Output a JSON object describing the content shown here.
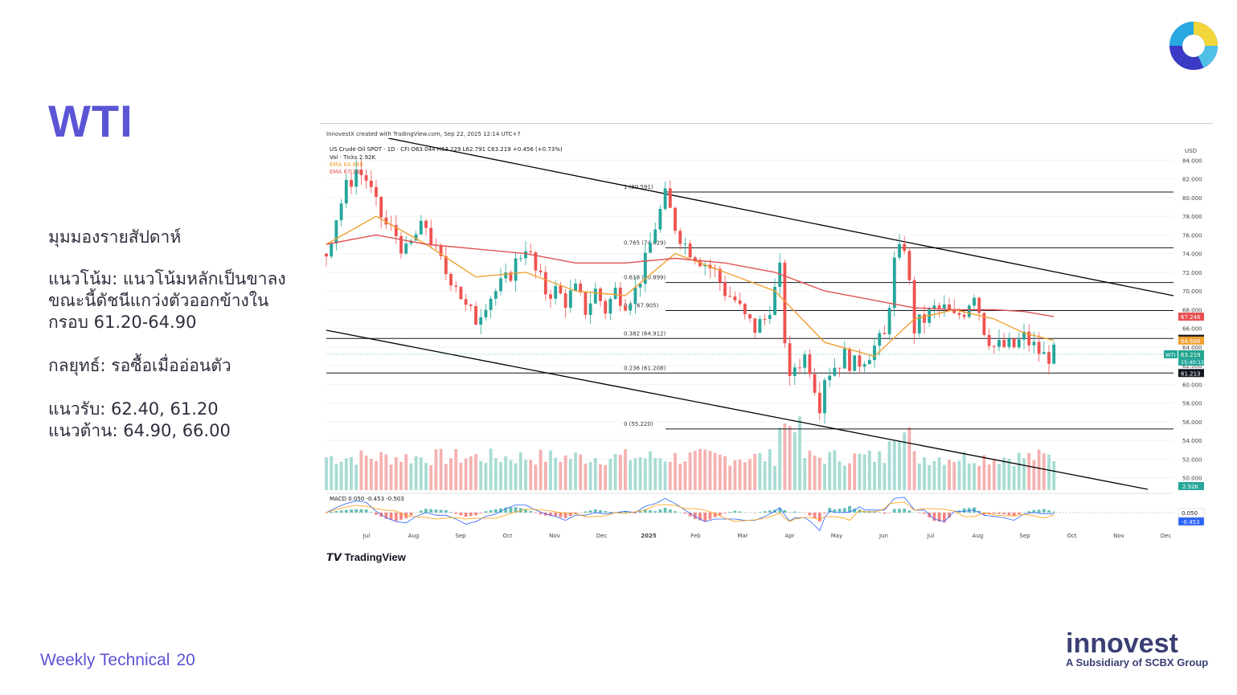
{
  "title": "WTI",
  "commentary": {
    "heading": "มุมมองรายสัปดาห์",
    "trend_line1": "แนวโน้ม: แนวโน้มหลักเป็นขาลง",
    "trend_line2": "ขณะนี้ดัชนีแกว่งตัวออกข้างใน",
    "trend_line3": "กรอบ 61.20-64.90",
    "strategy": "กลยุทธ์: รอซื้อเมื่ออ่อนตัว",
    "support": "แนวรับ: 62.40, 61.20",
    "resistance": "แนวต้าน: 64.90, 66.00"
  },
  "footer": {
    "label": "Weekly Technical",
    "page": "20"
  },
  "brand": {
    "name": "innovest",
    "tagline": "A Subsidiary of SCBX Group"
  },
  "chart_header": {
    "credit": "InnovestX created with TradingView.com, Sep 22, 2025 12:14 UTC+7",
    "symbol_line": "US Crude Oil SPOT · 1D · CFI  O63.044  H63.229  L62.791  C63.219  +0.456 (+0.73%)",
    "vol_line": "Vol · Ticks 2.92K",
    "ema1_line": "EMA 64.688",
    "ema2_line": "EMA 67.246",
    "currency": "USD",
    "tradingview": "TradingView",
    "macd_line": "MACD 0.050 -0.453 -0.503"
  },
  "chart_data": {
    "type": "line",
    "symbol": "US Crude Oil SPOT",
    "interval": "1D",
    "ohlc_last": {
      "open": 63.044,
      "high": 63.229,
      "low": 62.791,
      "close": 63.219,
      "change": 0.456,
      "change_pct": 0.73
    },
    "x_labels": [
      "Jul",
      "Aug",
      "Sep",
      "Oct",
      "Nov",
      "Dec",
      "2025",
      "Feb",
      "Mar",
      "Apr",
      "May",
      "Jun",
      "Jul",
      "Aug",
      "Sep",
      "Oct",
      "Nov",
      "Dec"
    ],
    "y_ticks": [
      50,
      52,
      54,
      56,
      58,
      60,
      62,
      64,
      66,
      68,
      70,
      72,
      74,
      76,
      78,
      80,
      82,
      84
    ],
    "ylim": [
      48.5,
      85.5
    ],
    "fib_levels": [
      {
        "label": "1 (80.591)",
        "value": 80.591
      },
      {
        "label": "0.765 (74.629)",
        "value": 74.629
      },
      {
        "label": "0.618 (70.899)",
        "value": 70.899
      },
      {
        "label": "0.5 (67.905)",
        "value": 67.905
      },
      {
        "label": "0.382 (64.912)",
        "value": 64.912
      },
      {
        "label": "0.236 (61.208)",
        "value": 61.208
      },
      {
        "label": "0 (55.220)",
        "value": 55.22
      }
    ],
    "price_tags": [
      {
        "label": "67.246",
        "value": 67.246,
        "color": "#e84d4d"
      },
      {
        "label": "64.879",
        "value": 64.879,
        "color": "#131722"
      },
      {
        "label": "64.688",
        "value": 64.688,
        "color": "#f0a030"
      },
      {
        "label": "63.219",
        "value": 63.219,
        "color": "#22a68b"
      },
      {
        "label": "61.213",
        "value": 61.213,
        "color": "#131722"
      }
    ],
    "countdown": "15:40:12",
    "vol_tag": "2.92K",
    "macd_tags": [
      "0.050",
      "-0.453"
    ],
    "series": [
      {
        "name": "US Crude Oil SPOT",
        "color": "#26a69a",
        "values": [
          [
            0,
            74
          ],
          [
            2,
            78
          ],
          [
            4,
            81
          ],
          [
            6,
            83
          ],
          [
            8,
            82
          ],
          [
            10,
            79
          ],
          [
            12,
            77
          ],
          [
            14,
            76
          ],
          [
            16,
            74
          ],
          [
            18,
            76
          ],
          [
            20,
            77
          ],
          [
            22,
            74
          ],
          [
            24,
            72
          ],
          [
            26,
            71
          ],
          [
            28,
            68
          ],
          [
            30,
            67
          ],
          [
            32,
            69
          ],
          [
            34,
            70
          ],
          [
            36,
            71
          ],
          [
            38,
            73
          ],
          [
            40,
            75
          ],
          [
            42,
            72
          ],
          [
            44,
            70
          ],
          [
            46,
            70
          ],
          [
            48,
            69
          ],
          [
            50,
            70
          ],
          [
            52,
            68
          ],
          [
            54,
            70
          ],
          [
            56,
            68
          ],
          [
            58,
            70
          ],
          [
            60,
            69
          ],
          [
            62,
            70
          ],
          [
            64,
            73
          ],
          [
            66,
            77
          ],
          [
            68,
            80
          ],
          [
            70,
            77
          ],
          [
            72,
            75
          ],
          [
            74,
            74
          ],
          [
            76,
            73
          ],
          [
            78,
            72
          ],
          [
            80,
            70
          ],
          [
            82,
            69
          ],
          [
            84,
            67
          ],
          [
            86,
            66
          ],
          [
            88,
            67
          ],
          [
            90,
            70
          ],
          [
            91,
            72
          ],
          [
            92,
            65
          ],
          [
            93,
            60
          ],
          [
            94,
            62
          ],
          [
            96,
            63
          ],
          [
            97,
            62
          ],
          [
            98,
            60
          ],
          [
            99,
            58
          ],
          [
            100,
            61
          ],
          [
            102,
            62
          ],
          [
            104,
            63
          ],
          [
            106,
            62
          ],
          [
            108,
            63
          ],
          [
            110,
            64
          ],
          [
            112,
            65
          ],
          [
            114,
            73
          ],
          [
            116,
            75
          ],
          [
            118,
            66
          ],
          [
            120,
            67
          ],
          [
            122,
            68
          ],
          [
            124,
            68
          ],
          [
            126,
            67
          ],
          [
            128,
            68
          ],
          [
            130,
            70
          ],
          [
            132,
            66
          ],
          [
            134,
            64
          ],
          [
            136,
            64
          ],
          [
            138,
            64
          ],
          [
            140,
            65
          ],
          [
            142,
            64
          ],
          [
            144,
            63
          ],
          [
            146,
            63.2
          ]
        ]
      },
      {
        "name": "EMA 64.688",
        "color": "#f0a030",
        "values": [
          [
            0,
            75
          ],
          [
            10,
            78
          ],
          [
            20,
            75
          ],
          [
            30,
            71.5
          ],
          [
            40,
            72
          ],
          [
            50,
            70
          ],
          [
            60,
            69.5
          ],
          [
            70,
            74
          ],
          [
            80,
            72
          ],
          [
            90,
            70
          ],
          [
            100,
            64.5
          ],
          [
            110,
            63
          ],
          [
            118,
            67
          ],
          [
            126,
            68
          ],
          [
            134,
            67
          ],
          [
            140,
            65.5
          ],
          [
            146,
            64.7
          ]
        ]
      },
      {
        "name": "EMA 67.246",
        "color": "#e05252",
        "values": [
          [
            0,
            75
          ],
          [
            10,
            76
          ],
          [
            20,
            75
          ],
          [
            30,
            74.5
          ],
          [
            40,
            74
          ],
          [
            50,
            73
          ],
          [
            60,
            73
          ],
          [
            70,
            73.5
          ],
          [
            80,
            73
          ],
          [
            90,
            72
          ],
          [
            100,
            70
          ],
          [
            110,
            69
          ],
          [
            118,
            68.2
          ],
          [
            126,
            68
          ],
          [
            134,
            68
          ],
          [
            140,
            67.8
          ],
          [
            146,
            67.25
          ]
        ]
      }
    ]
  }
}
